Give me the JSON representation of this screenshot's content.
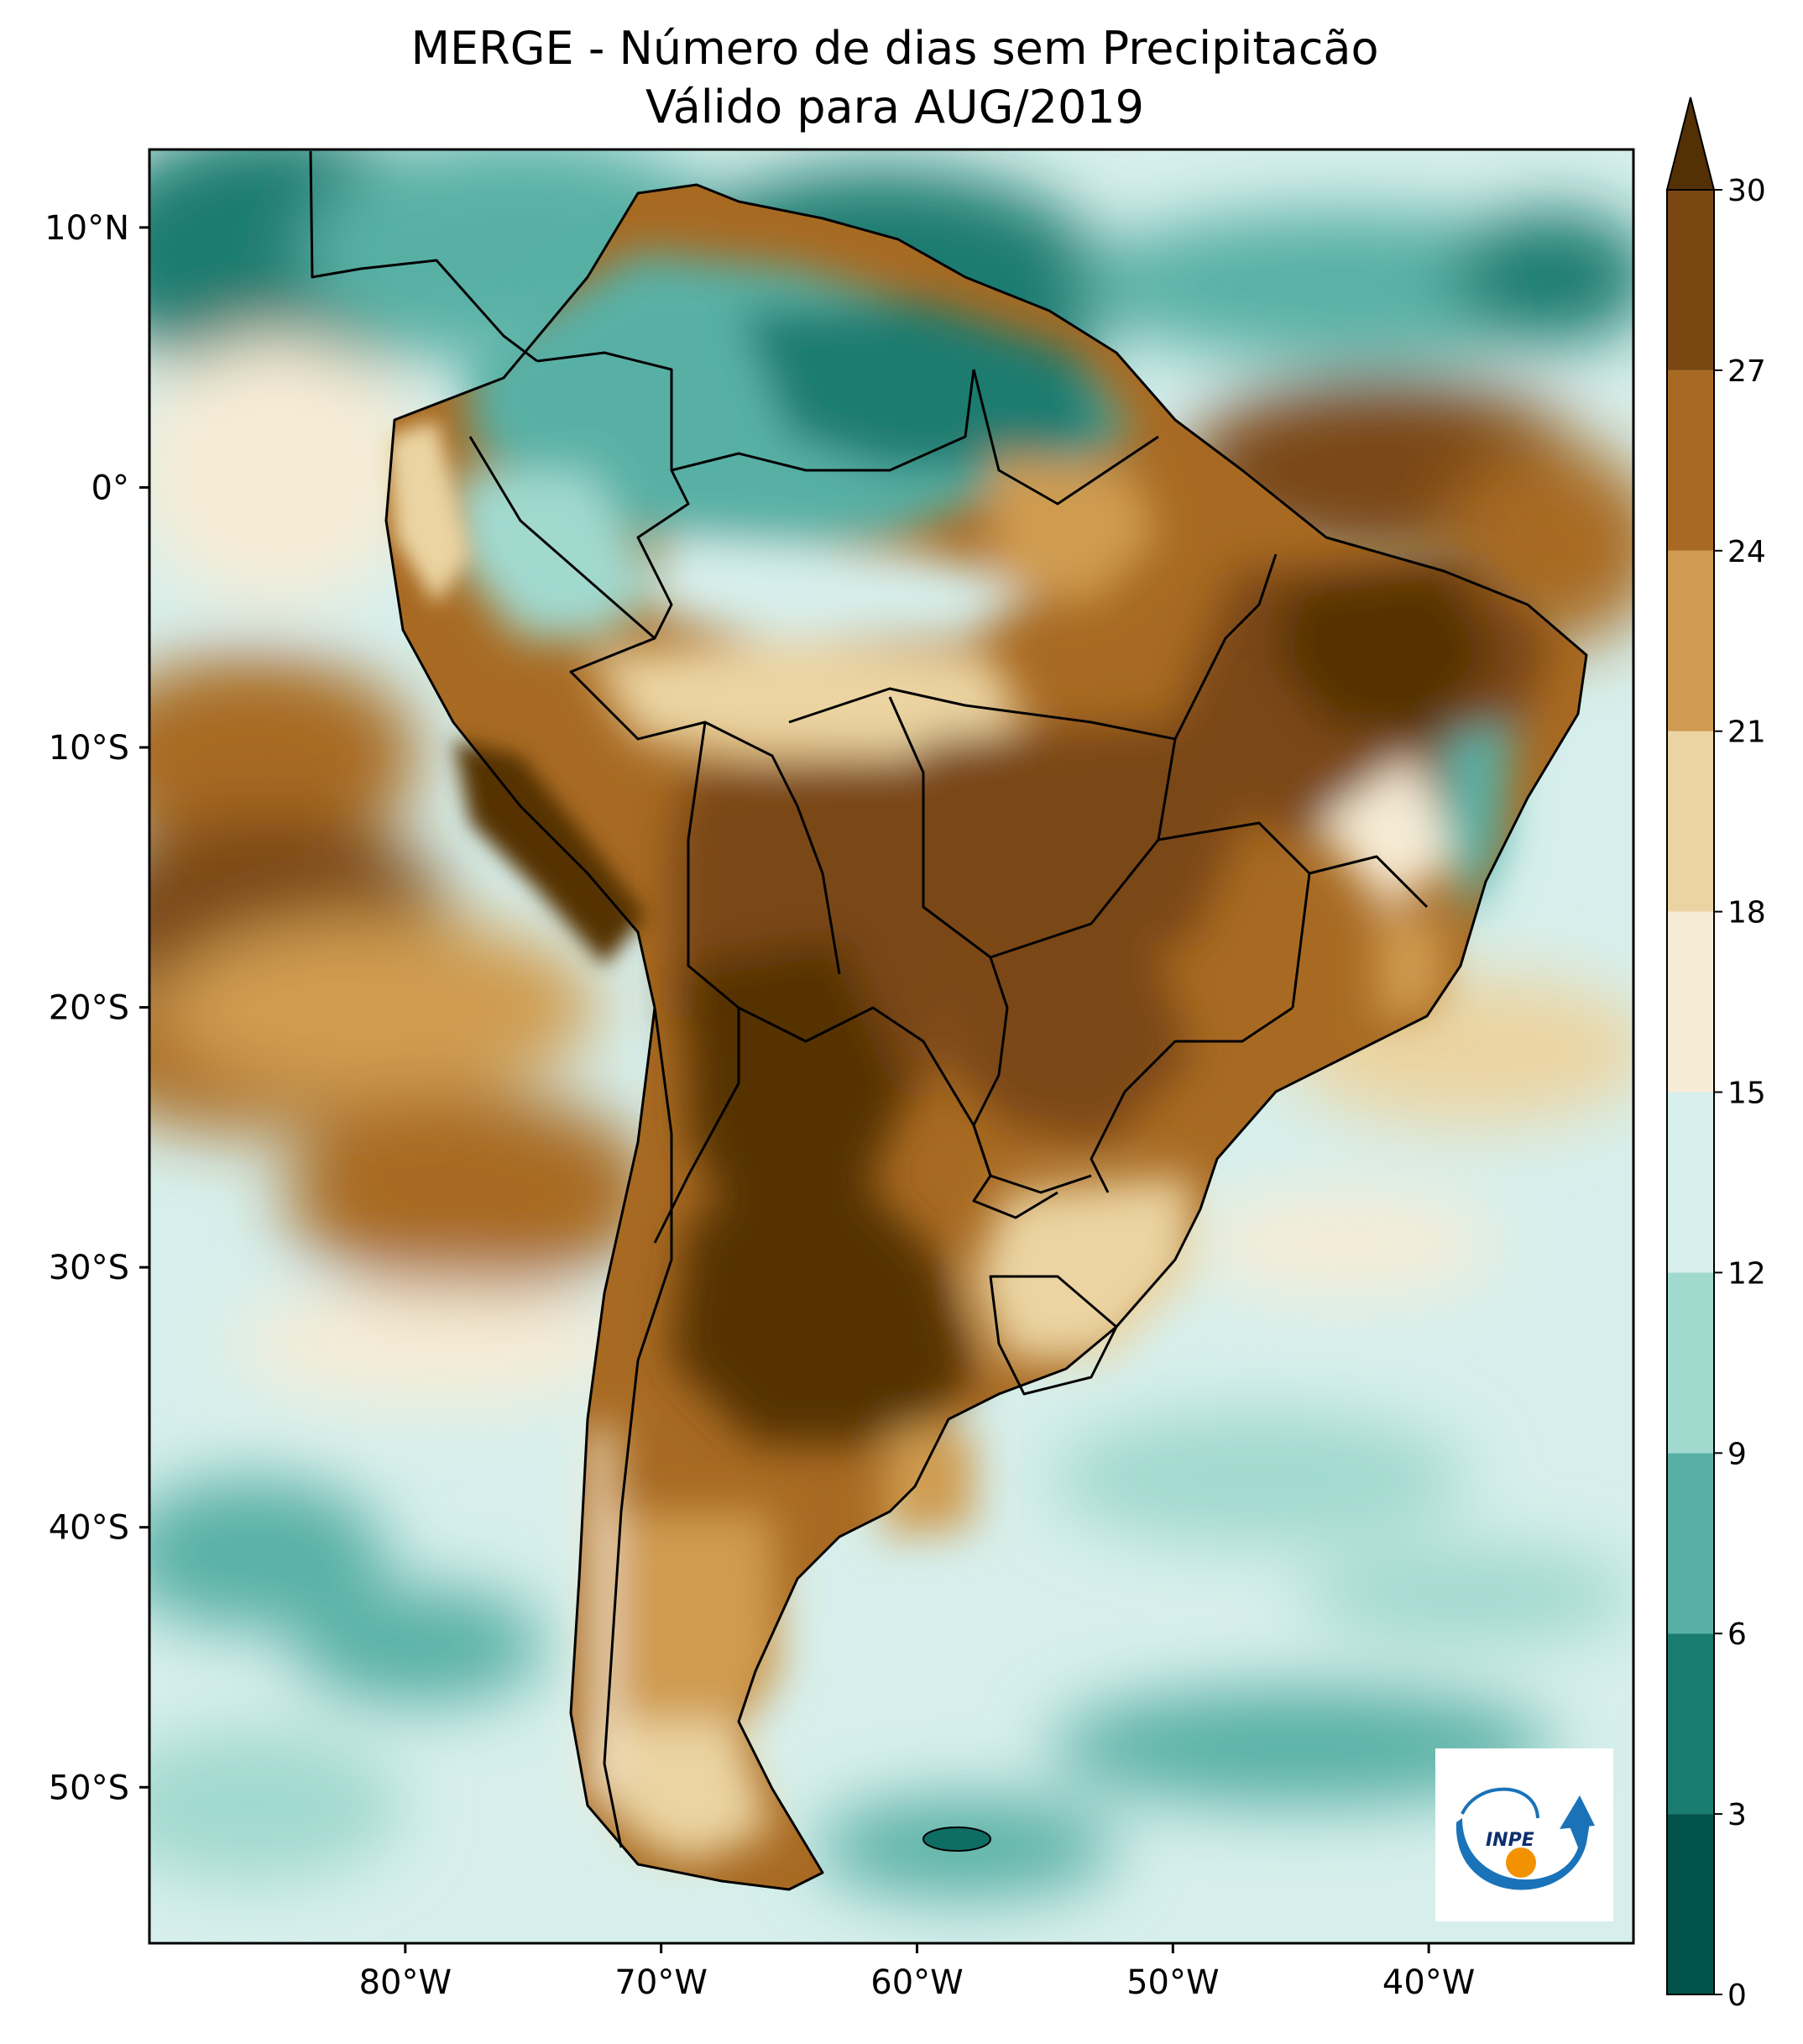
{
  "title": {
    "line1": "MERGE - Número de dias sem Precipitacão",
    "line2": "Válido para AUG/2019"
  },
  "map": {
    "region": "South America",
    "variable": "number of days without precipitation",
    "lon_range": [
      -90,
      -32
    ],
    "lat_range": [
      -56,
      13
    ],
    "x_ticks": [
      {
        "value": -80,
        "label": "80°W"
      },
      {
        "value": -70,
        "label": "70°W"
      },
      {
        "value": -60,
        "label": "60°W"
      },
      {
        "value": -50,
        "label": "50°W"
      },
      {
        "value": -40,
        "label": "40°W"
      }
    ],
    "y_ticks": [
      {
        "value": 10,
        "label": "10°N"
      },
      {
        "value": 0,
        "label": "0°"
      },
      {
        "value": -10,
        "label": "10°S"
      },
      {
        "value": -20,
        "label": "20°S"
      },
      {
        "value": -30,
        "label": "30°S"
      },
      {
        "value": -40,
        "label": "40°S"
      },
      {
        "value": -50,
        "label": "50°S"
      }
    ]
  },
  "colorbar": {
    "extend": "max",
    "levels": [
      0,
      3,
      6,
      9,
      12,
      15,
      18,
      21,
      24,
      27,
      30
    ],
    "labels": [
      "0",
      "3",
      "6",
      "9",
      "12",
      "15",
      "18",
      "21",
      "24",
      "27",
      "30"
    ],
    "colors": [
      "#01534a",
      "#1a7b70",
      "#58b0a5",
      "#a1d9cf",
      "#d7efec",
      "#f6ecd6",
      "#ebd4a2",
      "#cf9b50",
      "#a86a22",
      "#7a4712",
      "#543005"
    ]
  },
  "logo": {
    "text": "INPE"
  },
  "colors": {
    "teal_dark": "#0e6d64",
    "teal_mid": "#4ea79b",
    "teal_light": "#a1d9cf",
    "teal_pale": "#d7efec",
    "cream": "#f6ecd6",
    "tan": "#ebd4a2",
    "ochre": "#cf9b50",
    "brown": "#a86a22",
    "dark_brown": "#7a4712",
    "darkest_brown": "#543005",
    "logo_blue": "#1a73b9",
    "logo_orange": "#f29200"
  }
}
